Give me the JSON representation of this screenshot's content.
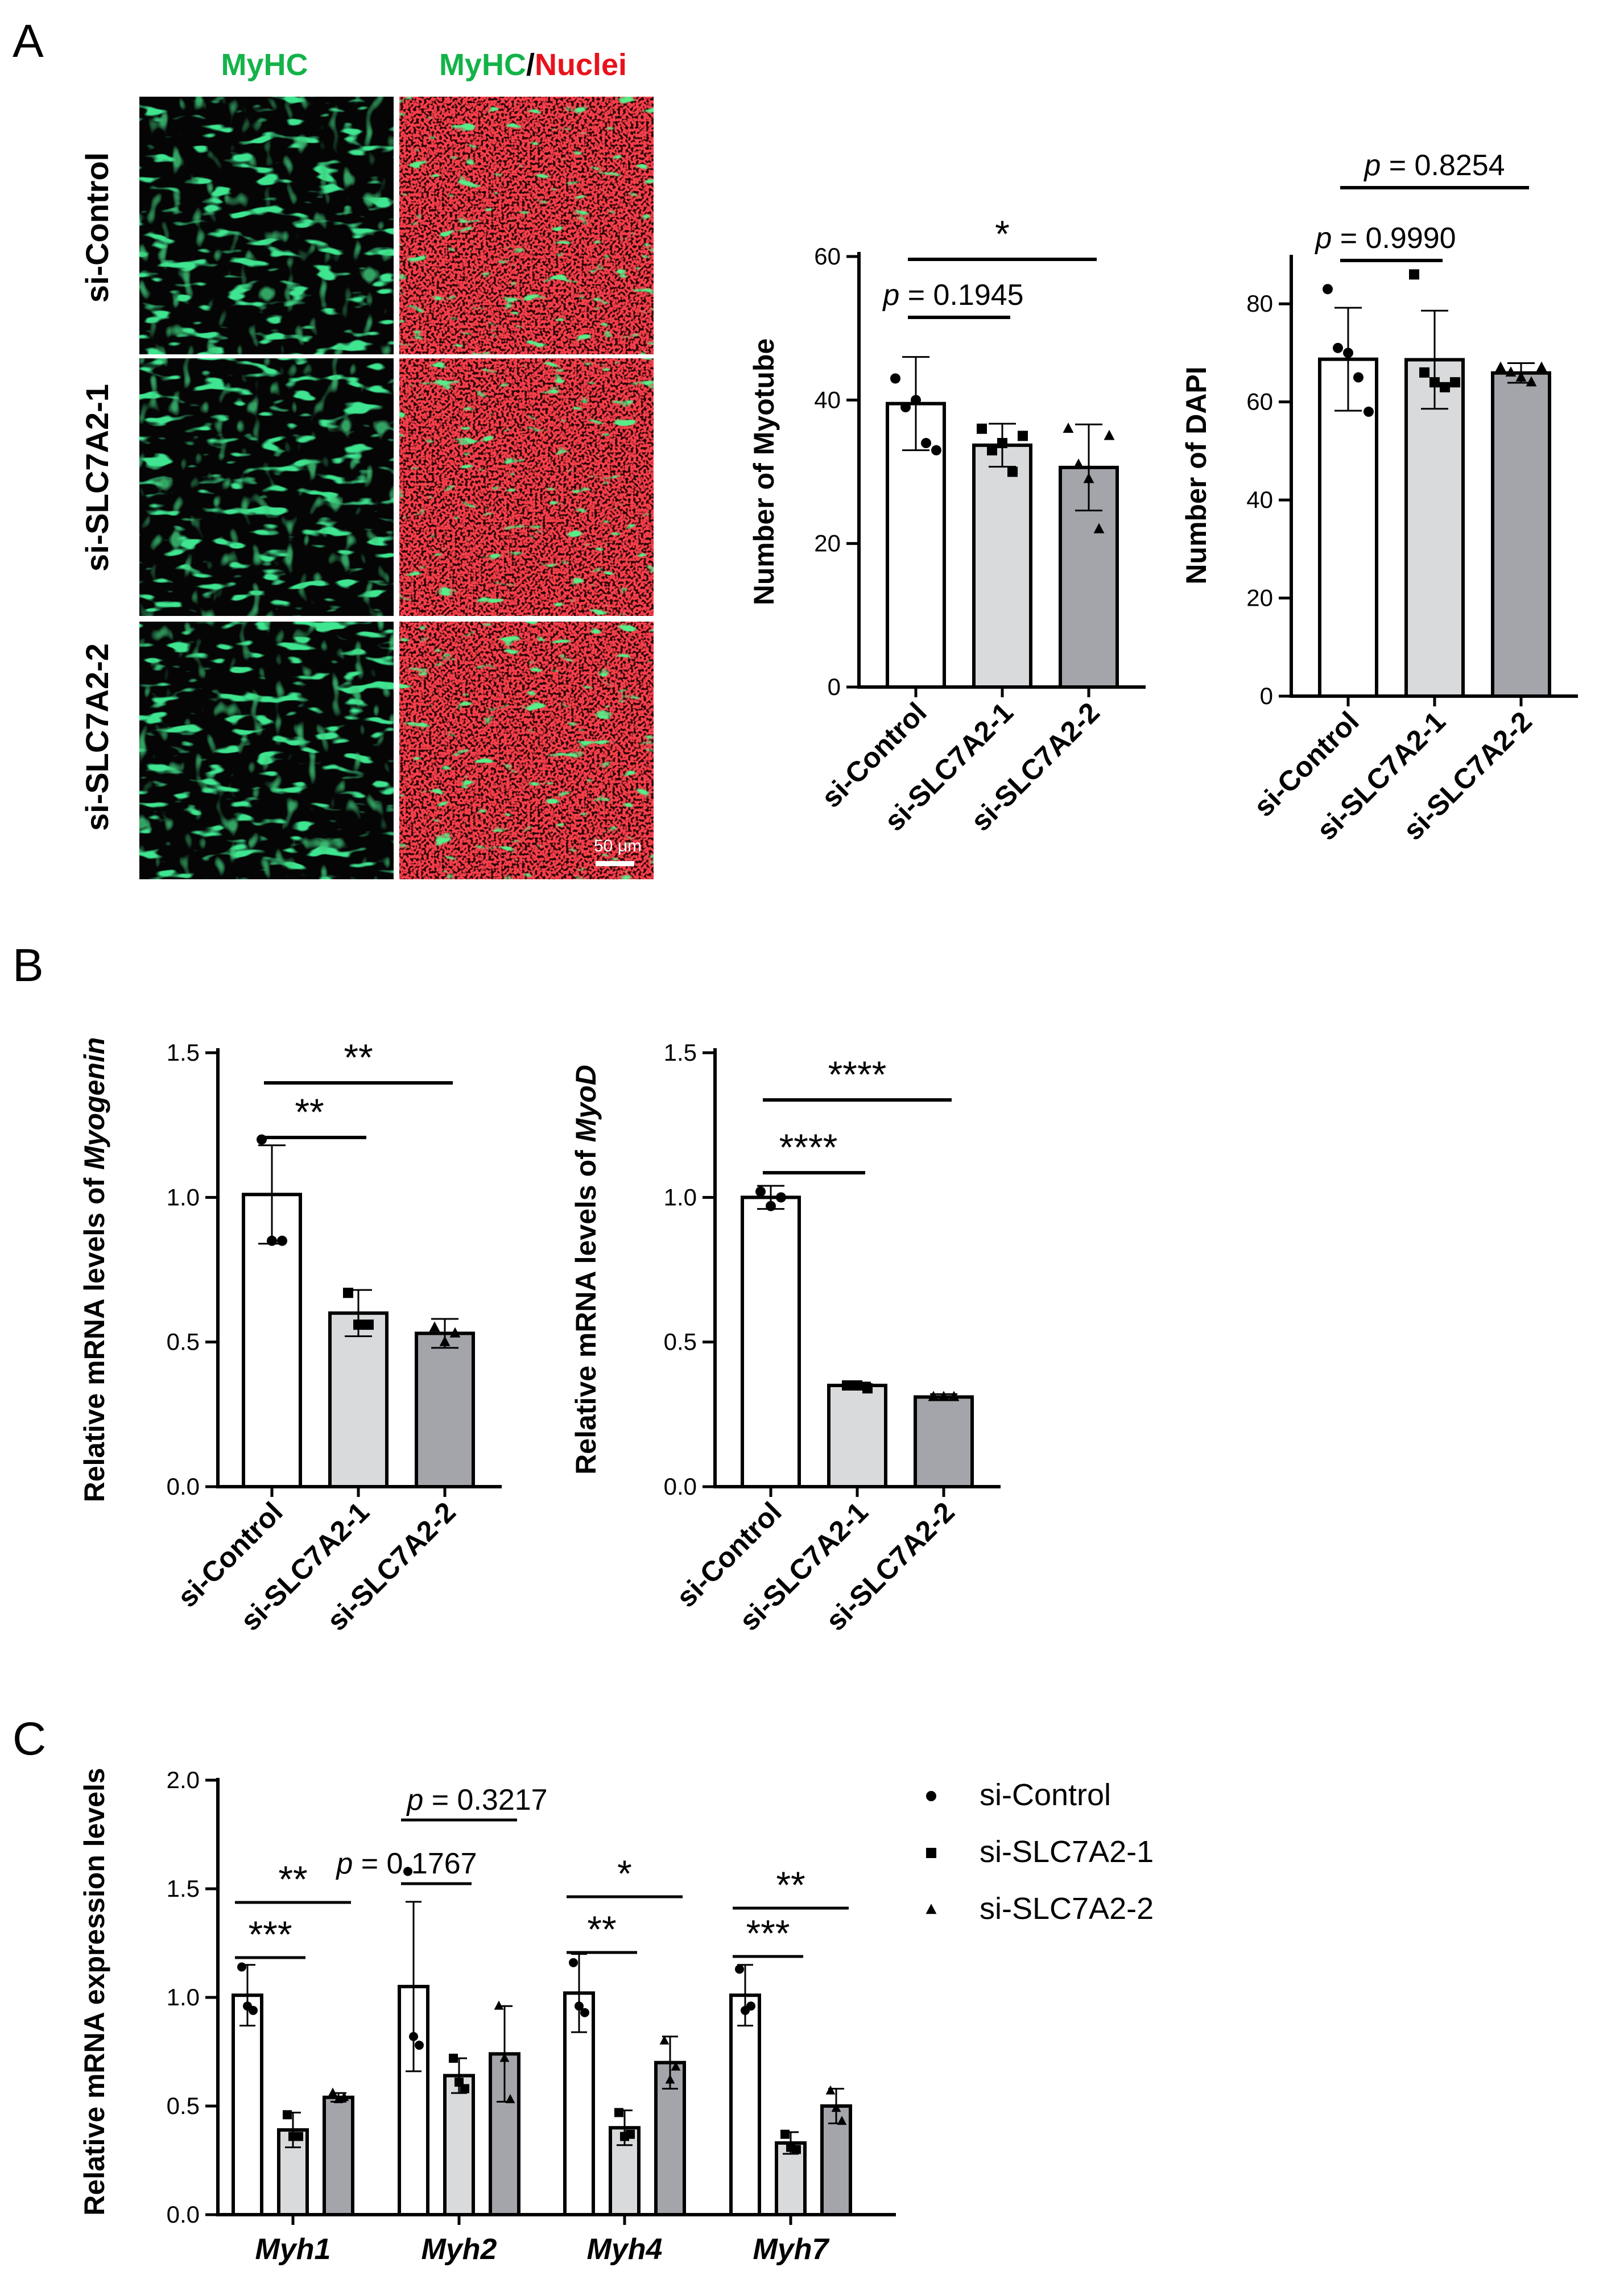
{
  "colors": {
    "green": "#14b34a",
    "red": "#e8121c",
    "bar_control": "#ffffff",
    "bar_si1": "#d8dadb",
    "bar_si2": "#a3a5aa",
    "stroke": "#000000"
  },
  "panelA": {
    "letter": "A",
    "col_myhc": "MyHC",
    "col_merge_green": "MyHC",
    "col_merge_sep": "/",
    "col_merge_red": "Nuclei",
    "rows": [
      "si-Control",
      "si-SLC7A2-1",
      "si-SLC7A2-2"
    ],
    "scale_bar": "50 μm"
  },
  "panelB": {
    "letter": "B"
  },
  "panelC": {
    "letter": "C"
  },
  "chart_data": [
    {
      "id": "myotube",
      "type": "bar",
      "categories": [
        "si-Control",
        "si-SLC7A2-1",
        "si-SLC7A2-2"
      ],
      "values": [
        39.5,
        33.7,
        30.6
      ],
      "errors": [
        6.5,
        3.0,
        6.0
      ],
      "points": [
        [
          43,
          39,
          40,
          34,
          33
        ],
        [
          36,
          33,
          34,
          30,
          35
        ],
        [
          36,
          31,
          29,
          22,
          35
        ]
      ],
      "ylabel": "Number of Myotube",
      "ylim": [
        0,
        60
      ],
      "yticks": [
        0,
        20,
        40,
        60
      ],
      "annotations": [
        {
          "from": 0,
          "to": 1,
          "text": "p = 0.1945"
        },
        {
          "from": 0,
          "to": 2,
          "text": "*"
        }
      ]
    },
    {
      "id": "dapi",
      "type": "bar",
      "categories": [
        "si-Control",
        "si-SLC7A2-1",
        "si-SLC7A2-2"
      ],
      "values": [
        68.7,
        68.6,
        65.9
      ],
      "errors": [
        10.5,
        10.0,
        2.0
      ],
      "points": [
        [
          83,
          71,
          70,
          65,
          58
        ],
        [
          86,
          66,
          64,
          63,
          64
        ],
        [
          67,
          66,
          65,
          64,
          67
        ]
      ],
      "ylabel": "Number of DAPI",
      "ylim": [
        0,
        90
      ],
      "yticks": [
        0,
        20,
        40,
        60,
        80
      ],
      "annotations": [
        {
          "from": 0,
          "to": 1,
          "text": "p = 0.9990"
        },
        {
          "from": 0,
          "to": 2,
          "text": "p = 0.8254"
        }
      ]
    },
    {
      "id": "myogenin",
      "type": "bar",
      "categories": [
        "si-Control",
        "si-SLC7A2-1",
        "si-SLC7A2-2"
      ],
      "values": [
        1.01,
        0.6,
        0.53
      ],
      "errors": [
        0.17,
        0.08,
        0.05
      ],
      "points": [
        [
          1.2,
          0.85,
          0.85
        ],
        [
          0.67,
          0.56,
          0.56
        ],
        [
          0.55,
          0.5,
          0.53
        ]
      ],
      "ylabel_prefix": "Relative mRNA levels of ",
      "ylabel_gene": "Myogenin",
      "ylim": [
        0,
        1.5
      ],
      "yticks": [
        "0.0",
        "0.5",
        "1.0",
        "1.5"
      ],
      "annotations": [
        {
          "from": 0,
          "to": 1,
          "text": "**"
        },
        {
          "from": 0,
          "to": 2,
          "text": "**"
        }
      ]
    },
    {
      "id": "myod",
      "type": "bar",
      "categories": [
        "si-Control",
        "si-SLC7A2-1",
        "si-SLC7A2-2"
      ],
      "values": [
        1.0,
        0.35,
        0.31
      ],
      "errors": [
        0.04,
        0.01,
        0.01
      ],
      "points": [
        [
          1.02,
          0.97,
          1.0
        ],
        [
          0.35,
          0.35,
          0.34
        ],
        [
          0.31,
          0.31,
          0.31
        ]
      ],
      "ylabel_prefix": "Relative mRNA levels of ",
      "ylabel_gene": "MyoD",
      "ylim": [
        0,
        1.5
      ],
      "yticks": [
        "0.0",
        "0.5",
        "1.0",
        "1.5"
      ],
      "annotations": [
        {
          "from": 0,
          "to": 1,
          "text": "****"
        },
        {
          "from": 0,
          "to": 2,
          "text": "****"
        }
      ]
    },
    {
      "id": "myh",
      "type": "bar",
      "categories": [
        "Myh1",
        "Myh2",
        "Myh4",
        "Myh7"
      ],
      "series": [
        {
          "name": "si-Control",
          "values": [
            1.01,
            1.05,
            1.02,
            1.01
          ],
          "errors": [
            0.14,
            0.39,
            0.18,
            0.14
          ],
          "points": [
            [
              1.14,
              0.96,
              0.94
            ],
            [
              1.58,
              0.82,
              0.78
            ],
            [
              1.16,
              0.96,
              0.93
            ],
            [
              1.13,
              0.94,
              0.96
            ]
          ]
        },
        {
          "name": "si-SLC7A2-1",
          "values": [
            0.39,
            0.64,
            0.4,
            0.33
          ],
          "errors": [
            0.08,
            0.08,
            0.08,
            0.05
          ],
          "points": [
            [
              0.46,
              0.36,
              0.36
            ],
            [
              0.72,
              0.61,
              0.58
            ],
            [
              0.47,
              0.36,
              0.37
            ],
            [
              0.37,
              0.31,
              0.3
            ]
          ]
        },
        {
          "name": "si-SLC7A2-2",
          "values": [
            0.54,
            0.74,
            0.7,
            0.5
          ],
          "errors": [
            0.02,
            0.22,
            0.12,
            0.08
          ],
          "points": [
            [
              0.56,
              0.53,
              0.54
            ],
            [
              0.96,
              0.72,
              0.53
            ],
            [
              0.8,
              0.62,
              0.68
            ],
            [
              0.57,
              0.49,
              0.43
            ]
          ]
        }
      ],
      "ylabel": "Relative mRNA expression levels",
      "ylim": [
        0,
        2.0
      ],
      "yticks": [
        "0.0",
        "0.5",
        "1.0",
        "1.5",
        "2.0"
      ],
      "legend": "right",
      "annotations": [
        {
          "group": 0,
          "from": 0,
          "to": 1,
          "text": "***"
        },
        {
          "group": 0,
          "from": 0,
          "to": 2,
          "text": "**"
        },
        {
          "group": 1,
          "from": 0,
          "to": 1,
          "text": "p = 0.1767"
        },
        {
          "group": 1,
          "from": 0,
          "to": 2,
          "text": "p = 0.3217"
        },
        {
          "group": 2,
          "from": 0,
          "to": 1,
          "text": "**"
        },
        {
          "group": 2,
          "from": 0,
          "to": 2,
          "text": "*"
        },
        {
          "group": 3,
          "from": 0,
          "to": 1,
          "text": "***"
        },
        {
          "group": 3,
          "from": 0,
          "to": 2,
          "text": "**"
        }
      ]
    }
  ]
}
